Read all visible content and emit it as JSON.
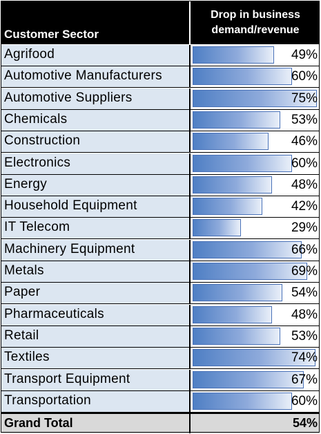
{
  "chart_data": {
    "type": "table",
    "columns": [
      "Customer Sector",
      "Drop in business demand/revenue"
    ],
    "header_line1": "Drop in business",
    "header_line2": "demand/revenue",
    "rows": [
      {
        "sector": "Agrifood",
        "value": 49,
        "label": "49%"
      },
      {
        "sector": "Automotive Manufacturers",
        "value": 60,
        "label": "60%"
      },
      {
        "sector": "Automotive Suppliers",
        "value": 75,
        "label": "75%"
      },
      {
        "sector": "Chemicals",
        "value": 53,
        "label": "53%"
      },
      {
        "sector": "Construction",
        "value": 46,
        "label": "46%"
      },
      {
        "sector": "Electronics",
        "value": 60,
        "label": "60%"
      },
      {
        "sector": "Energy",
        "value": 48,
        "label": "48%"
      },
      {
        "sector": "Household Equipment",
        "value": 42,
        "label": "42%"
      },
      {
        "sector": "IT Telecom",
        "value": 29,
        "label": "29%"
      },
      {
        "sector": "Machinery Equipment",
        "value": 66,
        "label": "66%"
      },
      {
        "sector": "Metals",
        "value": 69,
        "label": "69%"
      },
      {
        "sector": "Paper",
        "value": 54,
        "label": "54%"
      },
      {
        "sector": "Pharmaceuticals",
        "value": 48,
        "label": "48%"
      },
      {
        "sector": "Retail",
        "value": 53,
        "label": "53%"
      },
      {
        "sector": "Textiles",
        "value": 74,
        "label": "74%"
      },
      {
        "sector": "Transport Equipment",
        "value": 67,
        "label": "67%"
      },
      {
        "sector": "Transportation",
        "value": 60,
        "label": "60%"
      }
    ],
    "total": {
      "label": "Grand Total",
      "value": 54,
      "value_label": "54%"
    },
    "bar_max": 75,
    "colors": {
      "bar": "#4f7fc4",
      "label_fill": "#dce6f1",
      "header": "#000000",
      "total_fill": "#d9d9d9"
    }
  }
}
